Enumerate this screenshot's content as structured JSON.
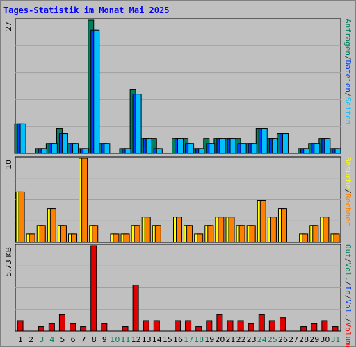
{
  "title": "Tages-Statistik im Monat Mai 2025",
  "right_labels": {
    "top": [
      {
        "text": "Anfragen",
        "color": "#00805c"
      },
      {
        "text": "/",
        "color": "#333333"
      },
      {
        "text": "Dateien",
        "color": "#0040ff"
      },
      {
        "text": "/",
        "color": "#333333"
      },
      {
        "text": "Seiten",
        "color": "#00c0ff"
      }
    ],
    "middle": [
      {
        "text": "Besuche",
        "color": "#ffff00"
      },
      {
        "text": "/",
        "color": "#333333"
      },
      {
        "text": "Rechner",
        "color": "#ff8000"
      }
    ],
    "bottom": [
      {
        "text": "Out",
        "color": "#00805c"
      },
      {
        "text": "/",
        "color": "#333333"
      },
      {
        "text": "Vol.",
        "color": "#00805c"
      },
      {
        "text": "/",
        "color": "#333333"
      },
      {
        "text": "In",
        "color": "#0040ff"
      },
      {
        "text": "/",
        "color": "#333333"
      },
      {
        "text": "Vol.",
        "color": "#0040ff"
      },
      {
        "text": "/",
        "color": "#333333"
      },
      {
        "text": "Volumen",
        "color": "#ff0000"
      }
    ]
  },
  "colors": {
    "anfragen": "#00805c",
    "dateien": "#0040ff",
    "seiten": "#00c0ff",
    "besuche": "#ffff00",
    "rechner": "#ff8000",
    "volumen": "#e00000",
    "grid": "#a0a0a0",
    "tick_weekday": "#000000",
    "tick_weekend": "#00805c"
  },
  "chart_data": [
    {
      "type": "bar",
      "ymax_label": "27",
      "ylim": [
        0,
        27
      ],
      "categories": [
        "1",
        "2",
        "3",
        "4",
        "5",
        "6",
        "7",
        "8",
        "9",
        "10",
        "11",
        "12",
        "13",
        "14",
        "15",
        "16",
        "17",
        "18",
        "19",
        "20",
        "21",
        "22",
        "23",
        "24",
        "25",
        "26",
        "27",
        "28",
        "29",
        "30",
        "31"
      ],
      "series": [
        {
          "name": "Anfragen",
          "values": [
            6,
            0,
            1,
            2,
            5,
            2,
            1,
            27,
            2,
            0,
            1,
            13,
            3,
            3,
            0,
            3,
            3,
            1,
            3,
            3,
            3,
            3,
            2,
            5,
            3,
            4,
            0,
            1,
            2,
            3,
            1
          ]
        },
        {
          "name": "Dateien",
          "values": [
            6,
            0,
            1,
            2,
            4,
            2,
            1,
            25,
            2,
            0,
            1,
            12,
            3,
            1,
            0,
            3,
            2,
            1,
            2,
            3,
            3,
            2,
            2,
            5,
            3,
            4,
            0,
            1,
            2,
            3,
            1
          ]
        },
        {
          "name": "Seiten",
          "values": [
            6,
            0,
            1,
            2,
            4,
            2,
            1,
            25,
            2,
            0,
            1,
            12,
            3,
            1,
            0,
            3,
            2,
            1,
            2,
            3,
            3,
            2,
            2,
            5,
            3,
            4,
            0,
            1,
            2,
            3,
            1
          ]
        }
      ]
    },
    {
      "type": "bar",
      "ymax_label": "10",
      "ylim": [
        0,
        10
      ],
      "categories": [
        "1",
        "2",
        "3",
        "4",
        "5",
        "6",
        "7",
        "8",
        "9",
        "10",
        "11",
        "12",
        "13",
        "14",
        "15",
        "16",
        "17",
        "18",
        "19",
        "20",
        "21",
        "22",
        "23",
        "24",
        "25",
        "26",
        "27",
        "28",
        "29",
        "30",
        "31"
      ],
      "series": [
        {
          "name": "Besuche",
          "values": [
            6,
            1,
            2,
            4,
            2,
            1,
            10,
            2,
            0,
            1,
            1,
            2,
            3,
            2,
            0,
            3,
            2,
            1,
            2,
            3,
            3,
            2,
            2,
            5,
            3,
            4,
            0,
            1,
            2,
            3,
            1
          ]
        },
        {
          "name": "Rechner",
          "values": [
            6,
            1,
            2,
            4,
            2,
            1,
            10,
            2,
            0,
            1,
            1,
            2,
            3,
            2,
            0,
            3,
            2,
            1,
            2,
            3,
            3,
            2,
            2,
            5,
            3,
            4,
            0,
            1,
            2,
            3,
            1
          ]
        }
      ]
    },
    {
      "type": "bar",
      "ymax_label": "5.73 KB",
      "ylim": [
        0,
        5.73
      ],
      "categories": [
        "1",
        "2",
        "3",
        "4",
        "5",
        "6",
        "7",
        "8",
        "9",
        "10",
        "11",
        "12",
        "13",
        "14",
        "15",
        "16",
        "17",
        "18",
        "19",
        "20",
        "21",
        "22",
        "23",
        "24",
        "25",
        "26",
        "27",
        "28",
        "29",
        "30",
        "31"
      ],
      "series": [
        {
          "name": "Volumen",
          "values": [
            0.7,
            0,
            0.3,
            0.5,
            1.1,
            0.5,
            0.3,
            5.73,
            0.5,
            0,
            0.3,
            3.1,
            0.7,
            0.7,
            0,
            0.7,
            0.7,
            0.3,
            0.7,
            1.1,
            0.7,
            0.7,
            0.5,
            1.1,
            0.7,
            0.9,
            0,
            0.3,
            0.5,
            0.7,
            0.3
          ]
        }
      ]
    }
  ],
  "weekend_days": [
    "3",
    "4",
    "10",
    "11",
    "17",
    "18",
    "24",
    "25",
    "31"
  ]
}
